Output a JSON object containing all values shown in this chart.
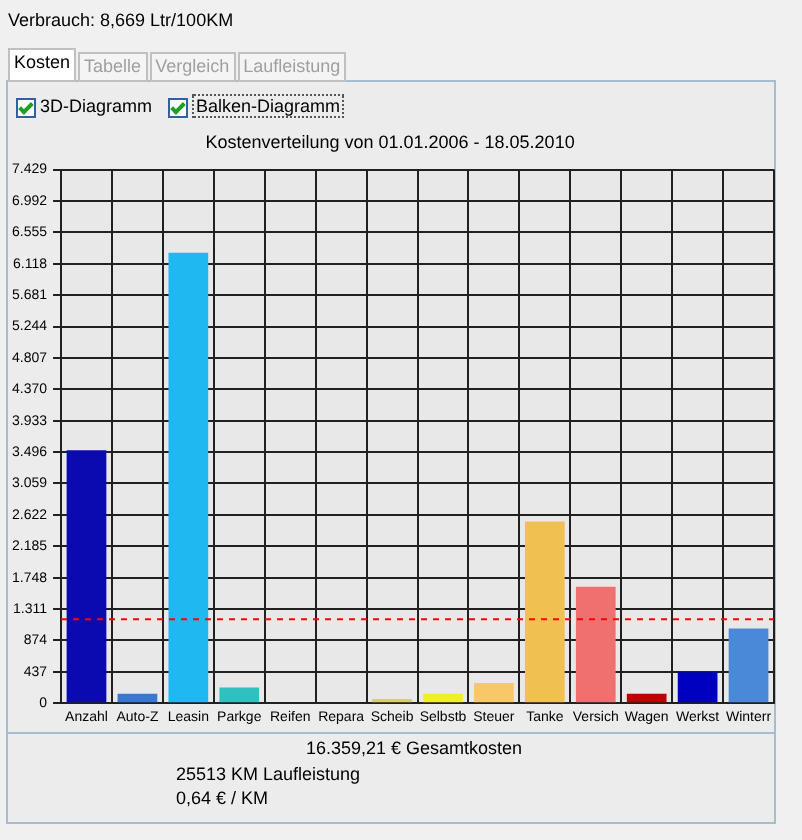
{
  "chart_data": {
    "type": "bar",
    "title": "Kostenverteilung von 01.01.2006 - 18.05.2010",
    "categories": [
      "Anzahl",
      "Auto-Z",
      "Leasin",
      "Parkge",
      "Reifen",
      "Repara",
      "Scheib",
      "Selbstb",
      "Steuer",
      "Tanke",
      "Versich",
      "Wagen",
      "Werkst",
      "Winterr"
    ],
    "values": [
      3520,
      130,
      6270,
      220,
      0,
      0,
      60,
      130,
      280,
      2530,
      1620,
      130,
      430,
      1040
    ],
    "colors": [
      "#0a0ab0",
      "#3a78d0",
      "#20b8f0",
      "#30c0c0",
      "#888888",
      "#888888",
      "#d8d060",
      "#f0f020",
      "#f8c868",
      "#f0c050",
      "#f07070",
      "#c00000",
      "#0000c0",
      "#4a88d8"
    ],
    "ylim": [
      0,
      7429
    ],
    "yticks": [
      0,
      437,
      874,
      {
        "value": 1311,
        "label": "1.311"
      },
      {
        "value": 1748,
        "label": "1.748"
      },
      {
        "value": 2185,
        "label": "2.185"
      },
      {
        "value": 2622,
        "label": "2.622"
      },
      {
        "value": 3059,
        "label": "3.059"
      },
      {
        "value": 3496,
        "label": "3.496"
      },
      {
        "value": 3933,
        "label": "3.933"
      },
      {
        "value": 4370,
        "label": "4.370"
      },
      {
        "value": 4807,
        "label": "4.807"
      },
      {
        "value": 5244,
        "label": "5.244"
      },
      {
        "value": 5681,
        "label": "5.681"
      },
      {
        "value": 6118,
        "label": "6.118"
      },
      {
        "value": 6555,
        "label": "6.555"
      },
      {
        "value": 6992,
        "label": "6.992"
      },
      {
        "value": 7429,
        "label": "7.429"
      }
    ],
    "grid": true,
    "ref_lines": [
      {
        "axis": "y",
        "value": 1170,
        "color": "#ff0000",
        "line_style": "dashed"
      }
    ],
    "annotations": [
      "Verbrauch: 8,669 Ltr/100KM",
      "Kosten",
      "Tabelle",
      "Vergleich",
      "Laufleistung",
      "3D-Diagramm",
      "Balken-Diagramm",
      "16.359,21 € Gesamtkosten",
      "25513 KM Laufleistung",
      "0,64 € / KM"
    ]
  }
}
